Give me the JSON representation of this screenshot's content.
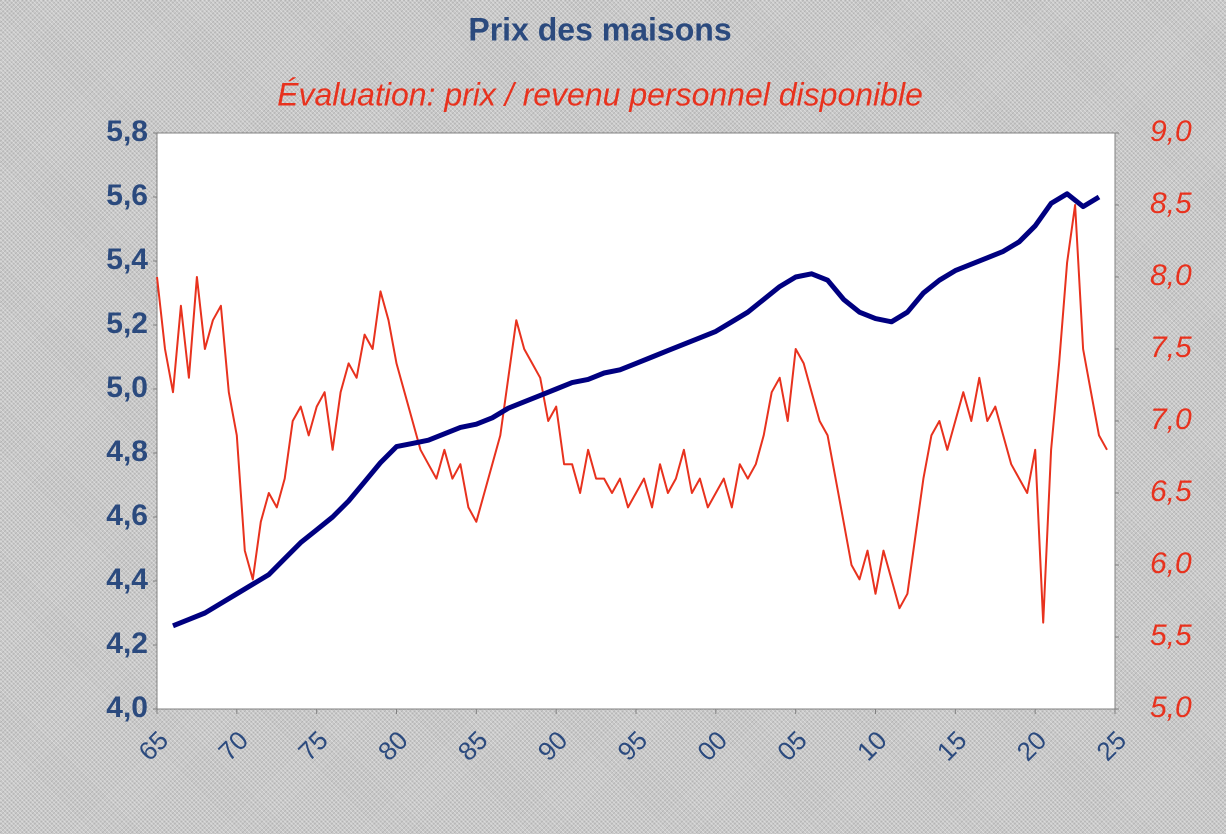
{
  "chart_data": {
    "type": "line",
    "title": "Prix des maisons",
    "subtitle": "Évaluation: prix / revenu personnel disponible",
    "xlim": [
      1965,
      2025
    ],
    "xticks": [
      {
        "value": 1965,
        "label": "65"
      },
      {
        "value": 1970,
        "label": "70"
      },
      {
        "value": 1975,
        "label": "75"
      },
      {
        "value": 1980,
        "label": "80"
      },
      {
        "value": 1985,
        "label": "85"
      },
      {
        "value": 1990,
        "label": "90"
      },
      {
        "value": 1995,
        "label": "95"
      },
      {
        "value": 2000,
        "label": "00"
      },
      {
        "value": 2005,
        "label": "05"
      },
      {
        "value": 2010,
        "label": "10"
      },
      {
        "value": 2015,
        "label": "15"
      },
      {
        "value": 2020,
        "label": "20"
      },
      {
        "value": 2025,
        "label": "25"
      }
    ],
    "ylim": [
      4.0,
      5.8
    ],
    "yticks": [
      {
        "value": 4.0,
        "label": "4,0"
      },
      {
        "value": 4.2,
        "label": "4,2"
      },
      {
        "value": 4.4,
        "label": "4,4"
      },
      {
        "value": 4.6,
        "label": "4,6"
      },
      {
        "value": 4.8,
        "label": "4,8"
      },
      {
        "value": 5.0,
        "label": "5,0"
      },
      {
        "value": 5.2,
        "label": "5,2"
      },
      {
        "value": 5.4,
        "label": "5,4"
      },
      {
        "value": 5.6,
        "label": "5,6"
      },
      {
        "value": 5.8,
        "label": "5,8"
      }
    ],
    "y2lim": [
      5.0,
      9.0
    ],
    "y2ticks": [
      {
        "value": 5.0,
        "label": "5,0"
      },
      {
        "value": 5.5,
        "label": "5,5"
      },
      {
        "value": 6.0,
        "label": "6,0"
      },
      {
        "value": 6.5,
        "label": "6,5"
      },
      {
        "value": 7.0,
        "label": "7,0"
      },
      {
        "value": 7.5,
        "label": "7,5"
      },
      {
        "value": 8.0,
        "label": "8,0"
      },
      {
        "value": 8.5,
        "label": "8,5"
      },
      {
        "value": 9.0,
        "label": "9,0"
      }
    ],
    "grid": false,
    "series": [
      {
        "color": "#000080",
        "axis": "y",
        "x": [
          1966,
          1967,
          1968,
          1969,
          1970,
          1971,
          1972,
          1973,
          1974,
          1975,
          1976,
          1977,
          1978,
          1979,
          1980,
          1981,
          1982,
          1983,
          1984,
          1985,
          1986,
          1987,
          1988,
          1989,
          1990,
          1991,
          1992,
          1993,
          1994,
          1995,
          1996,
          1997,
          1998,
          1999,
          2000,
          2001,
          2002,
          2003,
          2004,
          2005,
          2006,
          2007,
          2008,
          2009,
          2010,
          2011,
          2012,
          2013,
          2014,
          2015,
          2016,
          2017,
          2018,
          2019,
          2020,
          2021,
          2022,
          2023,
          2024
        ],
        "values": [
          4.26,
          4.28,
          4.3,
          4.33,
          4.36,
          4.39,
          4.42,
          4.47,
          4.52,
          4.56,
          4.6,
          4.65,
          4.71,
          4.77,
          4.82,
          4.83,
          4.84,
          4.86,
          4.88,
          4.89,
          4.91,
          4.94,
          4.96,
          4.98,
          5.0,
          5.02,
          5.03,
          5.05,
          5.06,
          5.08,
          5.1,
          5.12,
          5.14,
          5.16,
          5.18,
          5.21,
          5.24,
          5.28,
          5.32,
          5.35,
          5.36,
          5.34,
          5.28,
          5.24,
          5.22,
          5.21,
          5.24,
          5.3,
          5.34,
          5.37,
          5.39,
          5.41,
          5.43,
          5.46,
          5.51,
          5.58,
          5.61,
          5.57,
          5.6
        ]
      },
      {
        "color": "#e8321e",
        "axis": "y2",
        "x": [
          1965,
          1965.5,
          1966,
          1966.5,
          1967,
          1967.5,
          1968,
          1968.5,
          1969,
          1969.5,
          1970,
          1970.5,
          1971,
          1971.5,
          1972,
          1972.5,
          1973,
          1973.5,
          1974,
          1974.5,
          1975,
          1975.5,
          1976,
          1976.5,
          1977,
          1977.5,
          1978,
          1978.5,
          1979,
          1979.5,
          1980,
          1980.5,
          1981,
          1981.5,
          1982,
          1982.5,
          1983,
          1983.5,
          1984,
          1984.5,
          1985,
          1985.5,
          1986,
          1986.5,
          1987,
          1987.5,
          1988,
          1988.5,
          1989,
          1989.5,
          1990,
          1990.5,
          1991,
          1991.5,
          1992,
          1992.5,
          1993,
          1993.5,
          1994,
          1994.5,
          1995,
          1995.5,
          1996,
          1996.5,
          1997,
          1997.5,
          1998,
          1998.5,
          1999,
          1999.5,
          2000,
          2000.5,
          2001,
          2001.5,
          2002,
          2002.5,
          2003,
          2003.5,
          2004,
          2004.5,
          2005,
          2005.5,
          2006,
          2006.5,
          2007,
          2007.5,
          2008,
          2008.5,
          2009,
          2009.5,
          2010,
          2010.5,
          2011,
          2011.5,
          2012,
          2012.5,
          2013,
          2013.5,
          2014,
          2014.5,
          2015,
          2015.5,
          2016,
          2016.5,
          2017,
          2017.5,
          2018,
          2018.5,
          2019,
          2019.5,
          2020,
          2020.5,
          2021,
          2021.5,
          2022,
          2022.5,
          2023,
          2023.5,
          2024,
          2024.5
        ],
        "values": [
          8.0,
          7.5,
          7.2,
          7.8,
          7.3,
          8.0,
          7.5,
          7.7,
          7.8,
          7.2,
          6.9,
          6.1,
          5.9,
          6.3,
          6.5,
          6.4,
          6.6,
          7.0,
          7.1,
          6.9,
          7.1,
          7.2,
          6.8,
          7.2,
          7.4,
          7.3,
          7.6,
          7.5,
          7.9,
          7.7,
          7.4,
          7.2,
          7.0,
          6.8,
          6.7,
          6.6,
          6.8,
          6.6,
          6.7,
          6.4,
          6.3,
          6.5,
          6.7,
          6.9,
          7.3,
          7.7,
          7.5,
          7.4,
          7.3,
          7.0,
          7.1,
          6.7,
          6.7,
          6.5,
          6.8,
          6.6,
          6.6,
          6.5,
          6.6,
          6.4,
          6.5,
          6.6,
          6.4,
          6.7,
          6.5,
          6.6,
          6.8,
          6.5,
          6.6,
          6.4,
          6.5,
          6.6,
          6.4,
          6.7,
          6.6,
          6.7,
          6.9,
          7.2,
          7.3,
          7.0,
          7.5,
          7.4,
          7.2,
          7.0,
          6.9,
          6.6,
          6.3,
          6.0,
          5.9,
          6.1,
          5.8,
          6.1,
          5.9,
          5.7,
          5.8,
          6.2,
          6.6,
          6.9,
          7.0,
          6.8,
          7.0,
          7.2,
          7.0,
          7.3,
          7.0,
          7.1,
          6.9,
          6.7,
          6.6,
          6.5,
          6.8,
          5.6,
          6.8,
          7.4,
          8.1,
          8.5,
          7.5,
          7.2,
          6.9,
          6.8
        ]
      }
    ]
  }
}
